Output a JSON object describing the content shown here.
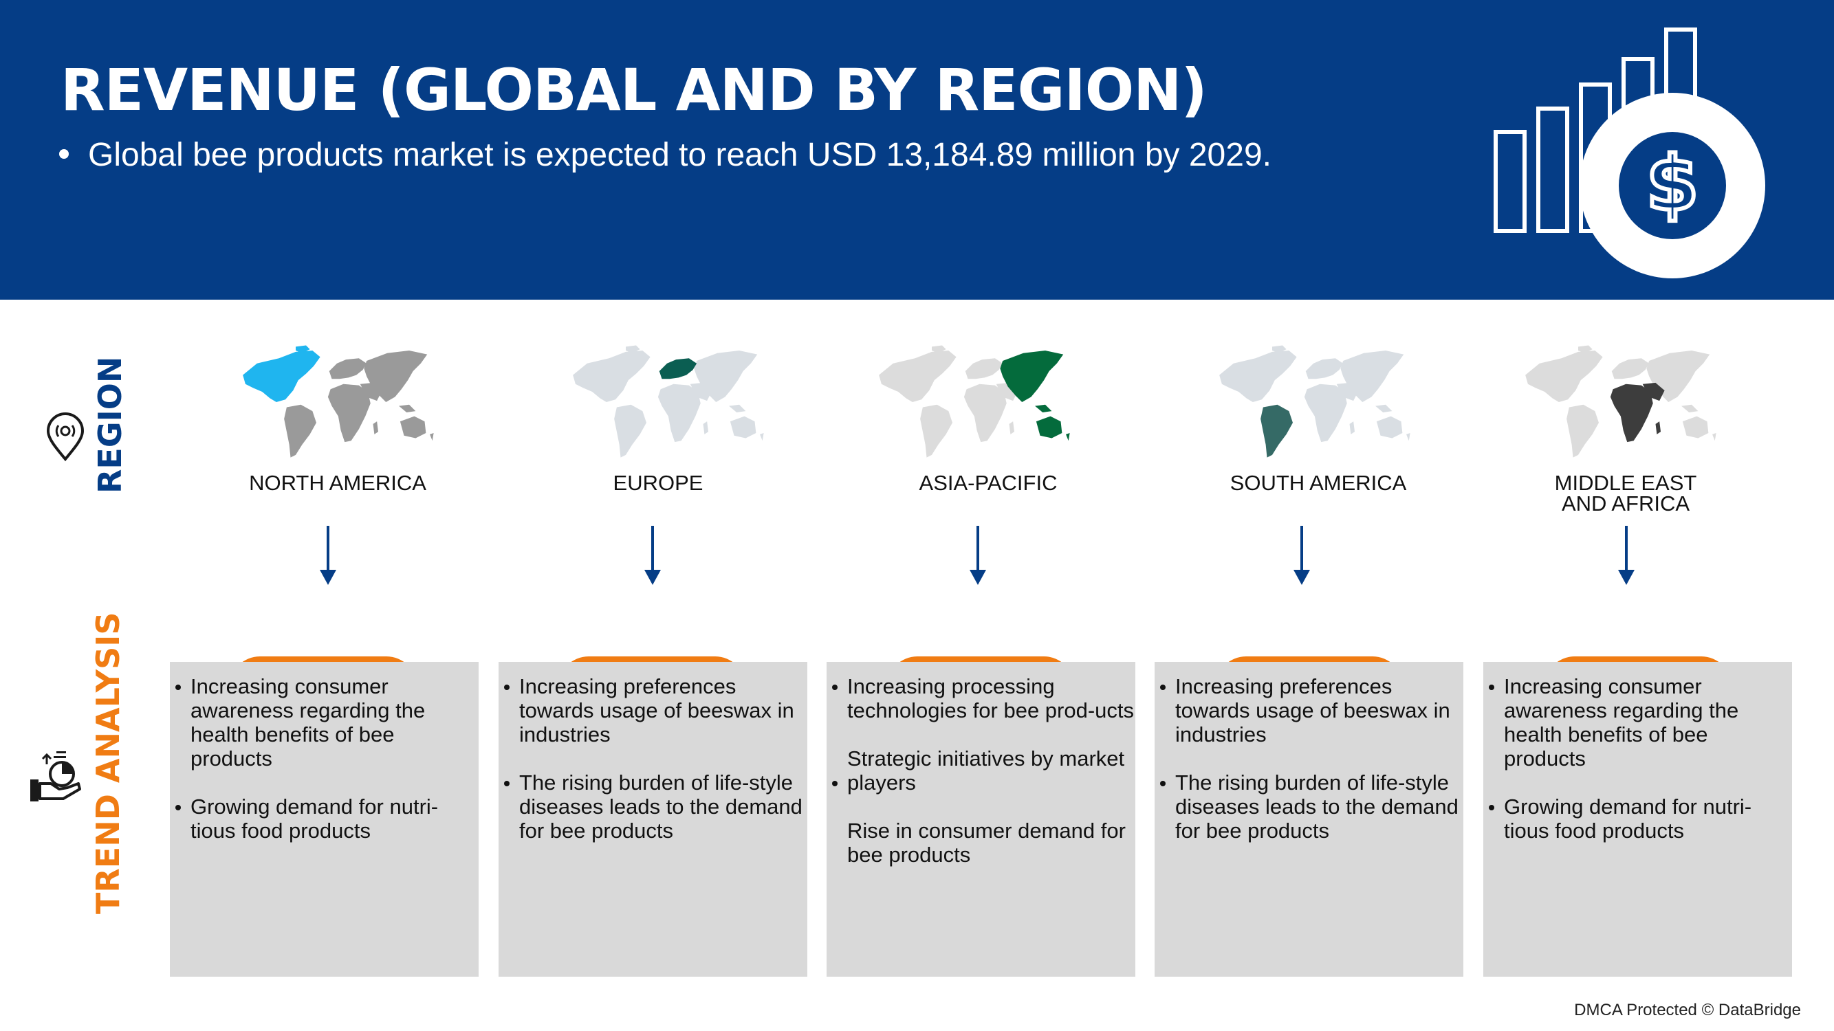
{
  "header": {
    "title": "REVENUE (GLOBAL AND BY REGION)",
    "subtitle": "Global bee products market is expected to reach USD 13,184.89 million by 2029.",
    "icon": "revenue-bar-chart-dollar-icon"
  },
  "side_labels": {
    "region": "REGION",
    "trend": "TREND ANALYSIS"
  },
  "colors": {
    "header_bg": "#053d86",
    "accent_orange": "#f07c13",
    "box_bg": "#d9d9d9",
    "north_america": "#1fb5ef",
    "europe": "#0b5e52",
    "asia_pacific": "#046b3c",
    "south_america": "#356a66",
    "mea": "#3d3d3d"
  },
  "regions": [
    {
      "name": "NORTH AMERICA",
      "trends": [
        "Increasing consumer awareness regarding the health benefits of bee products",
        "Growing demand for nutri-tious food products"
      ]
    },
    {
      "name": "EUROPE",
      "trends": [
        "Increasing preferences towards usage of beeswax in industries",
        "The rising burden of life-style diseases leads to the demand for bee products"
      ]
    },
    {
      "name": "ASIA-PACIFIC",
      "trends": [
        "Increasing processing technologies for bee prod-ucts",
        "Strategic initiatives by market players",
        "Rise in consumer demand for bee products"
      ]
    },
    {
      "name": "SOUTH AMERICA",
      "trends": [
        "Increasing preferences towards usage of beeswax in industries",
        "The rising burden of life-style diseases leads to the demand for bee products"
      ]
    },
    {
      "name": "MIDDLE EAST AND AFRICA",
      "trends": [
        "Increasing consumer awareness regarding the health benefits of bee products",
        "Growing demand for nutri-tious food products"
      ]
    }
  ],
  "footer": {
    "text": "DMCA Protected © DataBridge"
  }
}
